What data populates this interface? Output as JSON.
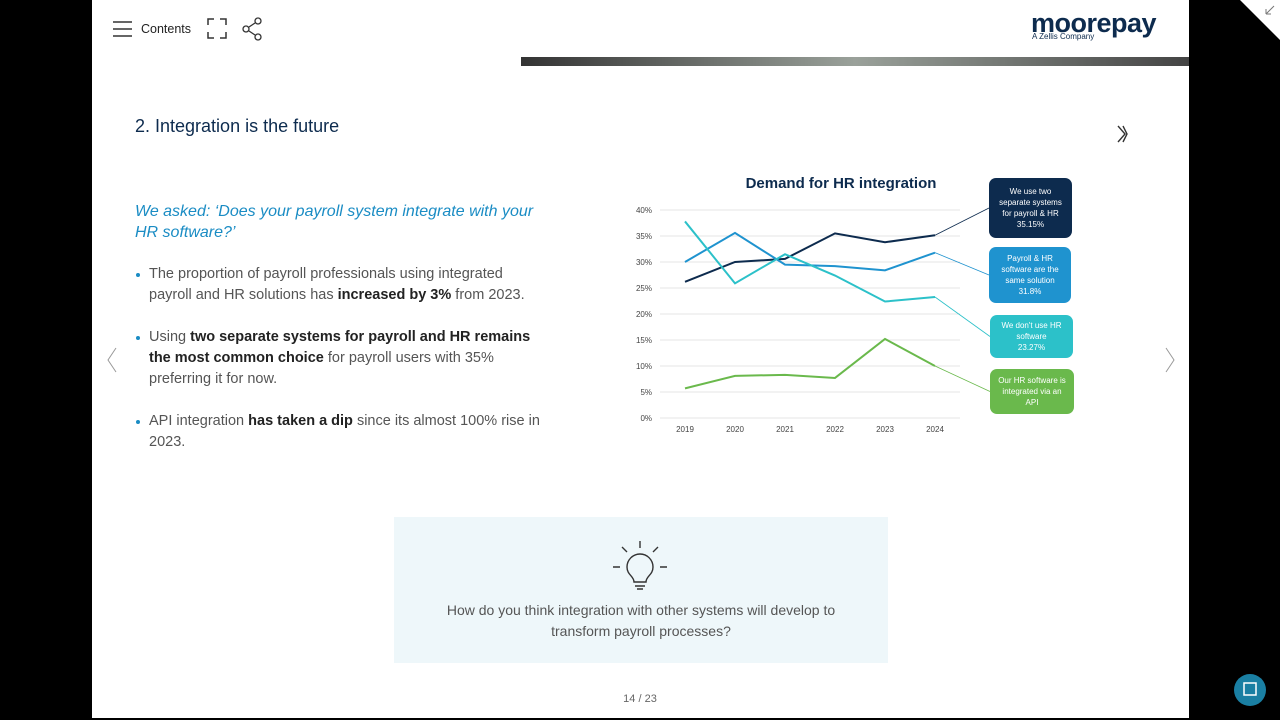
{
  "toolbar": {
    "contents": "Contents"
  },
  "logo": {
    "name": "moorepay",
    "tagline": "A Zellis Company"
  },
  "heading": "2. Integration is the future",
  "question": "We asked: ‘Does your payroll system integrate with your HR software?’",
  "bullets": [
    [
      {
        "text": "The proportion of payroll professionals using integrated payroll and HR solutions has ",
        "bold": false
      },
      {
        "text": "increased by 3%",
        "bold": true
      },
      {
        "text": " from 2023.",
        "bold": false
      }
    ],
    [
      {
        "text": "Using ",
        "bold": false
      },
      {
        "text": "two separate systems for payroll and HR remains the most common choice",
        "bold": true
      },
      {
        "text": " for payroll users with 35% preferring it for now.",
        "bold": false
      }
    ],
    [
      {
        "text": "API integration ",
        "bold": false
      },
      {
        "text": "has taken a dip",
        "bold": true
      },
      {
        "text": " since its almost 100% rise in 2023.",
        "bold": false
      }
    ]
  ],
  "chart_data": {
    "type": "line",
    "title": "Demand for HR integration",
    "categories": [
      "2019",
      "2020",
      "2021",
      "2022",
      "2023",
      "2024"
    ],
    "ylim": [
      0,
      40
    ],
    "yticks": [
      {
        "value": 0,
        "label": "0%"
      },
      {
        "value": 5,
        "label": "5%"
      },
      {
        "value": 10,
        "label": "10%"
      },
      {
        "value": 15,
        "label": "15%"
      },
      {
        "value": 20,
        "label": "20%"
      },
      {
        "value": 25,
        "label": "25%"
      },
      {
        "value": 30,
        "label": "30%"
      },
      {
        "value": 35,
        "label": "35%"
      },
      {
        "value": 40,
        "label": "40%"
      }
    ],
    "grid": true,
    "series": [
      {
        "name": "We use two separate systems for payroll & HR",
        "color": "#0d2b4e",
        "values": [
          26.2,
          30,
          30.6,
          35.5,
          33.8,
          35.15
        ],
        "value_labels": [
          null,
          null,
          null,
          null,
          null,
          "35.15%"
        ]
      },
      {
        "name": "Payroll & HR software are the same solution",
        "color": "#1f93cf",
        "values": [
          30,
          35.6,
          29.5,
          29.2,
          28.4,
          31.8
        ],
        "value_labels": [
          null,
          null,
          null,
          null,
          null,
          "31.8%"
        ]
      },
      {
        "name": "We don't use HR software",
        "color": "#2cc1c9",
        "values": [
          37.8,
          25.9,
          31.5,
          27.4,
          22.4,
          23.27
        ],
        "value_labels": [
          null,
          null,
          null,
          null,
          null,
          "23.27%"
        ]
      },
      {
        "name": "Our HR software is integrated via an API",
        "color": "#6ab94c",
        "values": [
          5.7,
          8.1,
          8.3,
          7.7,
          15.2,
          10
        ]
      }
    ]
  },
  "prompt": "How do you think integration with other systems will develop to transform payroll processes?",
  "pager": "14 / 23"
}
